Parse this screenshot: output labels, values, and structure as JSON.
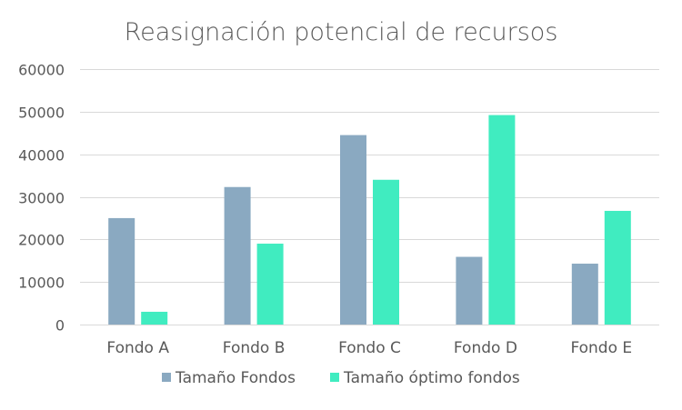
{
  "chart_data": {
    "type": "bar",
    "title": "Reasignación potencial de recursos",
    "xlabel": "",
    "ylabel": "",
    "categories": [
      "Fondo A",
      "Fondo B",
      "Fondo C",
      "Fondo D",
      "Fondo E"
    ],
    "series": [
      {
        "name": "Tamaño Fondos",
        "color": "#8aa9c1",
        "values": [
          25000,
          32300,
          44500,
          15900,
          14300
        ]
      },
      {
        "name": "Tamaño óptimo fondos",
        "color": "#40ecc0",
        "values": [
          3000,
          19000,
          34000,
          49200,
          26700
        ]
      }
    ],
    "ylim": [
      0,
      60000
    ],
    "yticks": [
      0,
      10000,
      20000,
      30000,
      40000,
      50000,
      60000
    ],
    "ytick_labels": [
      "0",
      "10000",
      "20000",
      "30000",
      "40000",
      "50000",
      "60000"
    ],
    "grid": true,
    "legend_position": "bottom"
  }
}
